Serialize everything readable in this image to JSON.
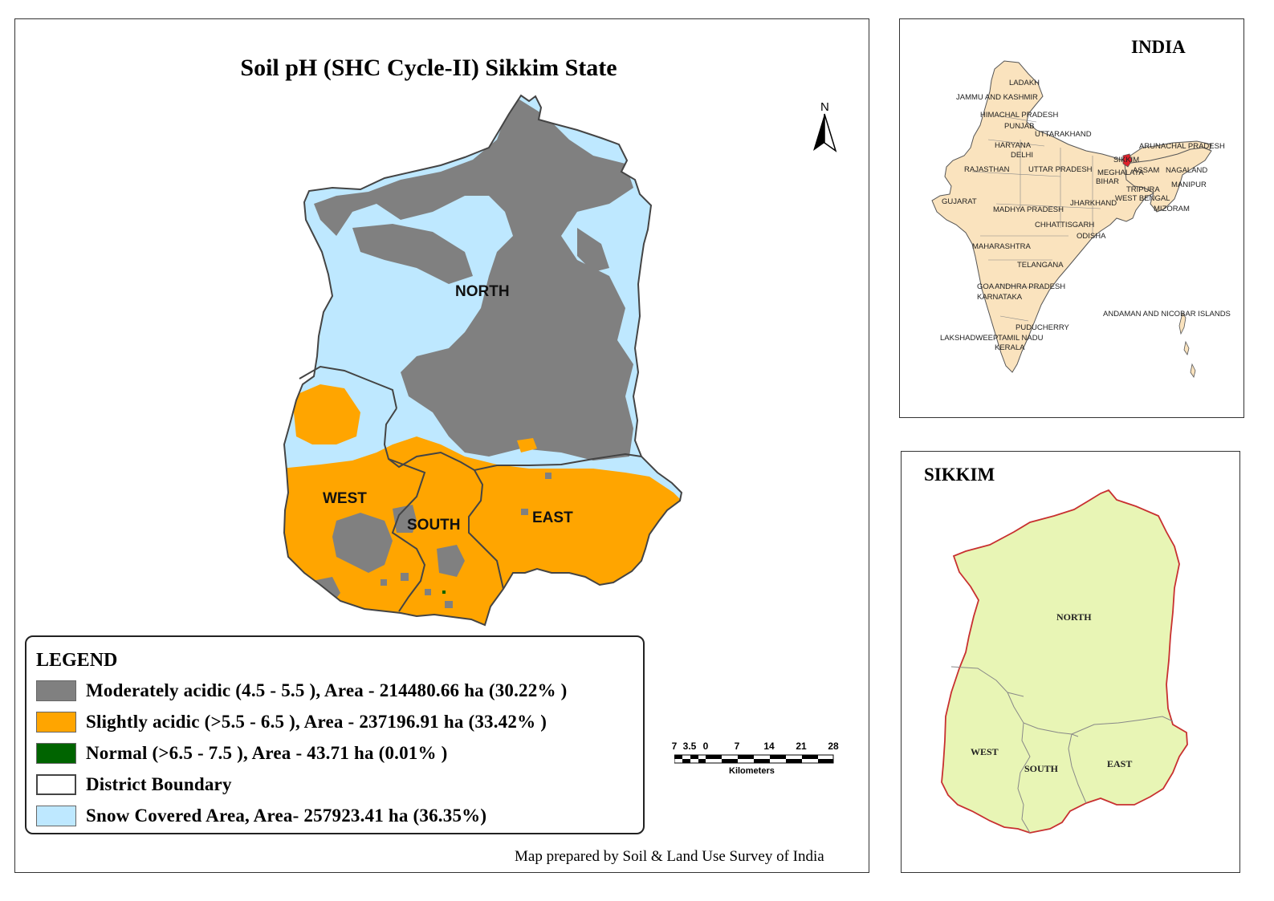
{
  "map": {
    "title": "Soil pH (SHC Cycle-II) Sikkim State",
    "north_label": "N",
    "districts": [
      "NORTH",
      "WEST",
      "SOUTH",
      "EAST"
    ],
    "credit": "Map prepared by Soil & Land Use Survey of India"
  },
  "legend": {
    "title": "LEGEND",
    "items": [
      {
        "label": "Moderately acidic  (4.5 - 5.5 ), Area - 214480.66  ha (30.22% )",
        "color": "#808080"
      },
      {
        "label": "Slightly acidic  (>5.5 - 6.5 ), Area - 237196.91  ha (33.42% )",
        "color": "#FFA500"
      },
      {
        "label": "Normal  (>6.5 - 7.5 ), Area - 43.71  ha (0.01% )",
        "color": "#006400"
      },
      {
        "label": "District Boundary",
        "color": "#FFFFFF"
      },
      {
        "label": "Snow Covered Area, Area- 257923.41 ha (36.35%)",
        "color": "#BEE8FF"
      }
    ]
  },
  "scalebar": {
    "ticks": [
      "7",
      "3.5",
      "0",
      "7",
      "14",
      "21",
      "28"
    ],
    "unit": "Kilometers"
  },
  "india_inset": {
    "title": "INDIA",
    "land_color": "#FAE3BE",
    "highlight_color": "#E0202A",
    "states": [
      "LADAKH",
      "JAMMU AND KASHMIR",
      "HIMACHAL PRADESH",
      "PUNJAB",
      "UTTARAKHAND",
      "HARYANA",
      "DELHI",
      "ARUNACHAL PRADESH",
      "SIKKIM",
      "RAJASTHAN",
      "UTTAR PRADESH",
      "MEGHALAYA",
      "ASSAM",
      "NAGALAND",
      "BIHAR",
      "MANIPUR",
      "TRIPURA",
      "WEST BENGAL",
      "GUJARAT",
      "JHARKHAND",
      "MADHYA PRADESH",
      "MIZORAM",
      "CHHATTISGARH",
      "ODISHA",
      "MAHARASHTRA",
      "TELANGANA",
      "GOA",
      "ANDHRA PRADESH",
      "KARNATAKA",
      "ANDAMAN AND NICOBAR ISLANDS",
      "PUDUCHERRY",
      "LAKSHADWEEP",
      "TAMIL NADU",
      "KERALA"
    ]
  },
  "sikkim_inset": {
    "title": "SIKKIM",
    "fill_color": "#E8F5B5",
    "districts": [
      "NORTH",
      "WEST",
      "SOUTH",
      "EAST"
    ]
  }
}
